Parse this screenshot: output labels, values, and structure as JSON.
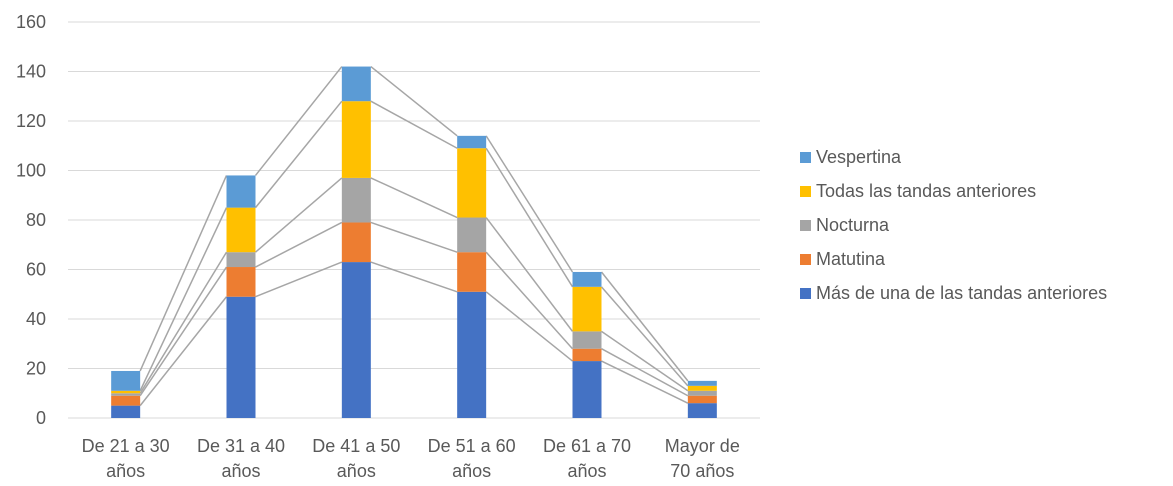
{
  "chart_data": {
    "type": "bar",
    "stacked": true,
    "categories": [
      [
        "De 21 a 30",
        "años"
      ],
      [
        "De 31 a 40",
        "años"
      ],
      [
        "De 41 a 50",
        "años"
      ],
      [
        "De 51 a 60",
        "años"
      ],
      [
        "De 61 a 70",
        "años"
      ],
      [
        "Mayor de",
        "70 años"
      ]
    ],
    "series": [
      {
        "name": "Más de una de las tandas anteriores",
        "color": "#4472c4",
        "values": [
          5,
          49,
          63,
          51,
          23,
          6
        ]
      },
      {
        "name": "Matutina",
        "color": "#ed7d31",
        "values": [
          4,
          12,
          16,
          16,
          5,
          3
        ]
      },
      {
        "name": "Nocturna",
        "color": "#a5a5a5",
        "values": [
          1,
          6,
          18,
          14,
          7,
          2
        ]
      },
      {
        "name": "Todas las tandas anteriores",
        "color": "#ffc000",
        "values": [
          1,
          18,
          31,
          28,
          18,
          2
        ]
      },
      {
        "name": "Vespertina",
        "color": "#5b9bd5",
        "values": [
          8,
          13,
          14,
          5,
          6,
          2
        ]
      }
    ],
    "ylim": [
      0,
      160
    ],
    "yticks": [
      0,
      20,
      40,
      60,
      80,
      100,
      120,
      140,
      160
    ],
    "grid": true,
    "series_lines": true,
    "legend_position": "right",
    "title": "",
    "xlabel": "",
    "ylabel": ""
  }
}
